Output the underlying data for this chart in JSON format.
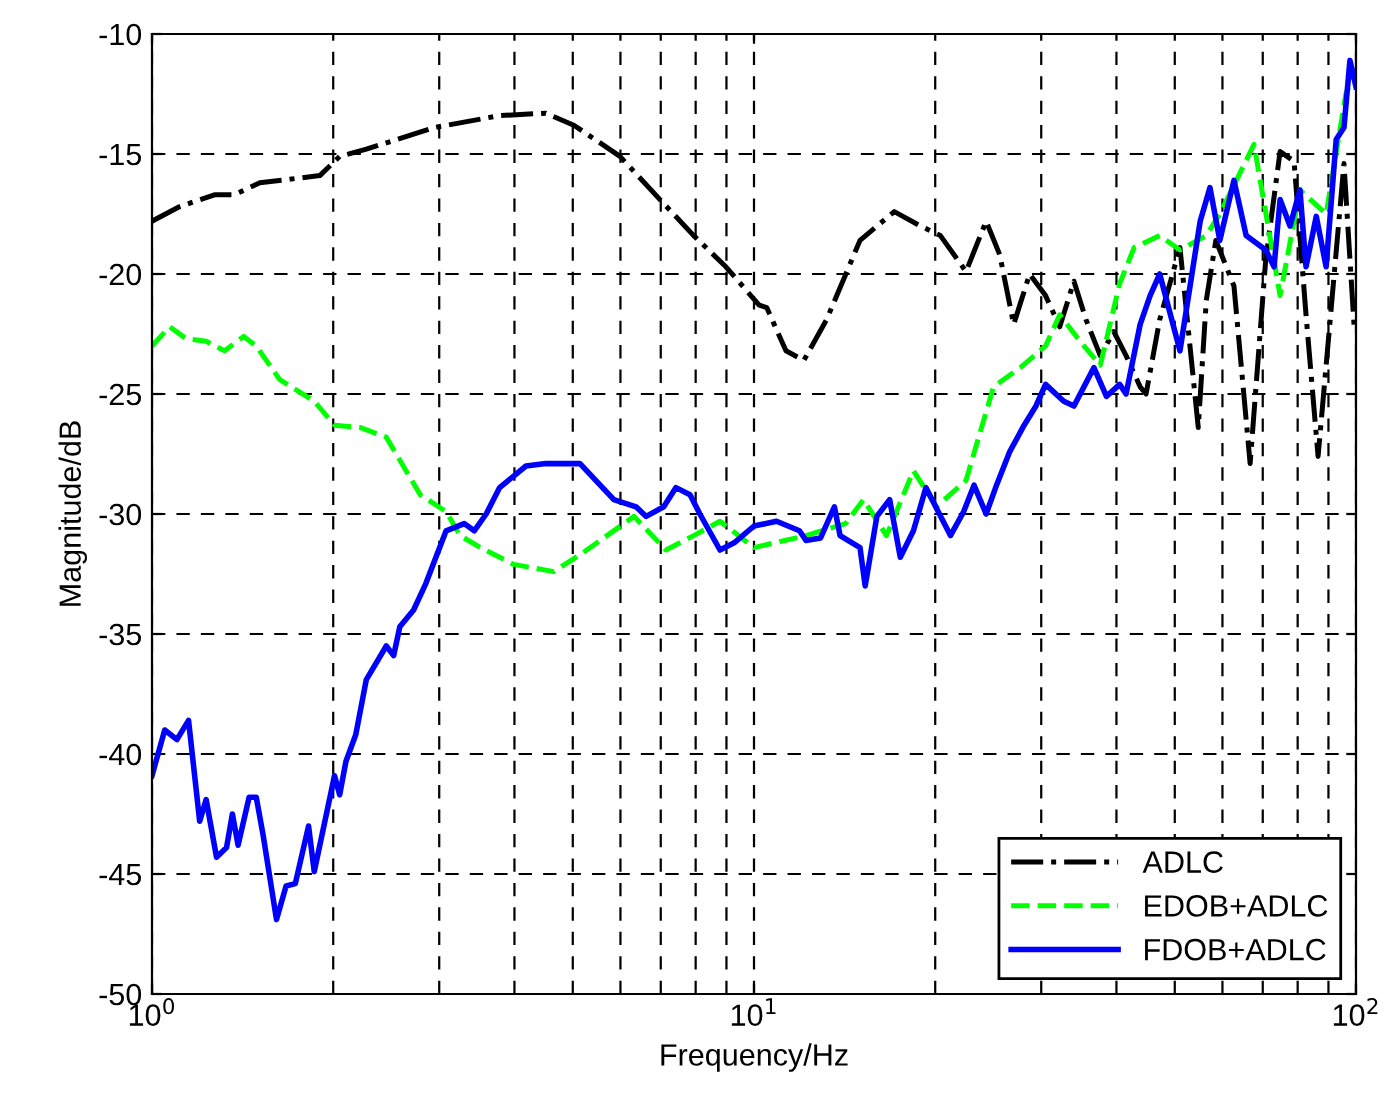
{
  "chart_data": {
    "type": "line",
    "xlabel": "Frequency/Hz",
    "ylabel": "Magnitude/dB",
    "log": "x",
    "xlim": [
      1,
      100
    ],
    "xticks": [
      {
        "value": 1,
        "label": "10$^{0}$"
      },
      {
        "value": 10,
        "label": "10$^{1}$"
      },
      {
        "value": 100,
        "label": "10$^{2}$"
      }
    ],
    "ylim": [
      -50,
      -10
    ],
    "yticks": [
      -50,
      -45,
      -40,
      -35,
      -30,
      -25,
      -20,
      -15,
      -10
    ],
    "grid": true,
    "legend": "bottom right",
    "series": [
      {
        "name": "ADLC",
        "color": "#000000",
        "line_style": "dashdot",
        "x": [
          1.0,
          1.11,
          1.27,
          1.37,
          1.51,
          1.9,
          2.05,
          2.27,
          2.94,
          3.78,
          4.51,
          5.02,
          5.99,
          6.98,
          7.94,
          8.98,
          10.2,
          10.5,
          11.3,
          12.1,
          13.2,
          15.0,
          17.1,
          18.9,
          20.4,
          22.5,
          24.3,
          25.6,
          27.0,
          28.7,
          30.5,
          32.2,
          34.0,
          35.6,
          37.6,
          39.6,
          41.5,
          43.8,
          44.8,
          47.2,
          51.0,
          54.7,
          56.4,
          58.5,
          62.7,
          66.7,
          70.8,
          74.8,
          78.9,
          82.6,
          86.5,
          90.6,
          95.5,
          99.3
        ],
        "values": [
          -17.8,
          -17.2,
          -16.7,
          -16.7,
          -16.2,
          -15.9,
          -15.1,
          -14.8,
          -13.9,
          -13.4,
          -13.3,
          -13.8,
          -15.1,
          -16.9,
          -18.4,
          -19.7,
          -21.3,
          -21.4,
          -23.2,
          -23.6,
          -21.9,
          -18.6,
          -17.4,
          -18.0,
          -18.4,
          -19.9,
          -17.8,
          -19.2,
          -22.1,
          -20.0,
          -20.9,
          -22.2,
          -20.3,
          -21.9,
          -23.4,
          -22.4,
          -23.4,
          -24.7,
          -25.0,
          -21.9,
          -18.9,
          -26.4,
          -21.1,
          -18.6,
          -20.5,
          -27.9,
          -19.4,
          -14.9,
          -15.3,
          -21.7,
          -27.6,
          -21.9,
          -15.4,
          -22.2
        ]
      },
      {
        "name": "EDOB+ADLC",
        "color": "#00ff00",
        "line_style": "dashed",
        "x": [
          1.0,
          1.07,
          1.14,
          1.23,
          1.32,
          1.42,
          1.49,
          1.63,
          1.86,
          2.01,
          2.22,
          2.45,
          2.79,
          3.08,
          3.25,
          3.51,
          3.99,
          4.65,
          5.14,
          6.32,
          7.14,
          7.94,
          8.78,
          10.0,
          12.2,
          14.2,
          15.2,
          16.6,
          18.4,
          20.1,
          22.5,
          25.0,
          27.7,
          30.5,
          32.2,
          34.8,
          37.6,
          40.5,
          42.8,
          47.2,
          51.0,
          56.4,
          59.4,
          67.7,
          74.8,
          80.7,
          89.2,
          96.2,
          100
        ],
        "values": [
          -23.0,
          -22.2,
          -22.7,
          -22.8,
          -23.2,
          -22.6,
          -23.0,
          -24.4,
          -25.3,
          -26.3,
          -26.4,
          -26.8,
          -29.2,
          -29.9,
          -30.9,
          -31.4,
          -32.1,
          -32.4,
          -31.7,
          -30.1,
          -31.5,
          -30.9,
          -30.3,
          -31.4,
          -30.9,
          -30.4,
          -29.4,
          -30.9,
          -28.2,
          -29.7,
          -28.6,
          -24.7,
          -23.9,
          -23.0,
          -21.7,
          -22.8,
          -23.8,
          -20.4,
          -18.9,
          -18.4,
          -19.0,
          -18.4,
          -17.5,
          -14.6,
          -20.9,
          -16.5,
          -17.5,
          -12.5,
          -11.4
        ]
      },
      {
        "name": "FDOB+ADLC",
        "color": "#0000ff",
        "line_style": "solid",
        "x": [
          1.0,
          1.05,
          1.1,
          1.15,
          1.2,
          1.23,
          1.28,
          1.33,
          1.36,
          1.39,
          1.45,
          1.49,
          1.53,
          1.61,
          1.67,
          1.73,
          1.82,
          1.86,
          2.01,
          2.05,
          2.1,
          2.18,
          2.27,
          2.45,
          2.52,
          2.58,
          2.72,
          2.85,
          3.08,
          3.3,
          3.43,
          3.59,
          3.78,
          4.18,
          4.51,
          5.14,
          5.85,
          6.37,
          6.62,
          7.08,
          7.42,
          7.83,
          8.13,
          8.78,
          9.27,
          10.0,
          10.9,
          11.9,
          12.2,
          12.9,
          13.6,
          13.9,
          15.0,
          15.3,
          16.0,
          16.8,
          17.5,
          18.4,
          19.3,
          21.2,
          22.3,
          23.2,
          24.3,
          25.2,
          26.6,
          28.1,
          29.4,
          30.5,
          32.7,
          34.0,
          36.7,
          38.5,
          40.5,
          41.5,
          43.8,
          45.5,
          47.2,
          51.0,
          55.1,
          57.2,
          59.4,
          62.7,
          65.7,
          70.8,
          73.1,
          74.8,
          77.7,
          80.7,
          82.6,
          85.9,
          89.2,
          92.7,
          95.5,
          97.7,
          100
        ],
        "values": [
          -40.9,
          -39.0,
          -39.4,
          -38.6,
          -42.8,
          -41.9,
          -44.3,
          -43.9,
          -42.5,
          -43.8,
          -41.8,
          -41.8,
          -43.4,
          -46.9,
          -45.5,
          -45.4,
          -43.0,
          -44.9,
          -40.9,
          -41.7,
          -40.3,
          -39.2,
          -36.9,
          -35.5,
          -35.9,
          -34.7,
          -34.0,
          -32.9,
          -30.7,
          -30.4,
          -30.7,
          -30.0,
          -28.9,
          -28.0,
          -27.9,
          -27.9,
          -29.4,
          -29.7,
          -30.1,
          -29.7,
          -28.9,
          -29.2,
          -30.0,
          -31.5,
          -31.2,
          -30.5,
          -30.3,
          -30.7,
          -31.1,
          -31.0,
          -29.7,
          -30.9,
          -31.4,
          -33.0,
          -30.1,
          -29.4,
          -31.8,
          -30.7,
          -28.9,
          -30.9,
          -29.9,
          -28.8,
          -30.0,
          -28.9,
          -27.4,
          -26.3,
          -25.5,
          -24.6,
          -25.3,
          -25.5,
          -23.9,
          -25.1,
          -24.6,
          -25.0,
          -22.1,
          -20.9,
          -20.0,
          -23.2,
          -17.8,
          -16.4,
          -18.6,
          -16.1,
          -18.4,
          -19.0,
          -19.7,
          -16.9,
          -18.0,
          -16.5,
          -19.7,
          -17.6,
          -19.7,
          -14.4,
          -13.9,
          -11.1,
          -12.2
        ]
      }
    ]
  }
}
